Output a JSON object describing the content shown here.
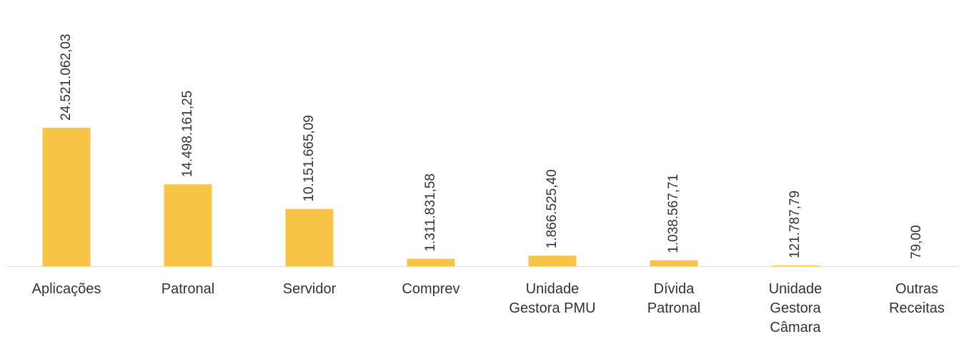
{
  "chart_data": {
    "type": "bar",
    "categories": [
      "Aplicações",
      "Patronal",
      "Servidor",
      "Comprev",
      "Unidade Gestora PMU",
      "Dívida Patronal",
      "Unidade Gestora Câmara",
      "Outras Receitas"
    ],
    "values": [
      24521062.03,
      14498161.25,
      10151665.09,
      1311831.58,
      1866525.4,
      1038567.71,
      121787.79,
      79.0
    ],
    "value_labels": [
      "24.521.062,03",
      "14.498.161,25",
      "10.151.665,09",
      "1.311.831,58",
      "1.866.525,40",
      "1.038.567,71",
      "121.787,79",
      "79,00"
    ],
    "color": "#f8c445"
  }
}
